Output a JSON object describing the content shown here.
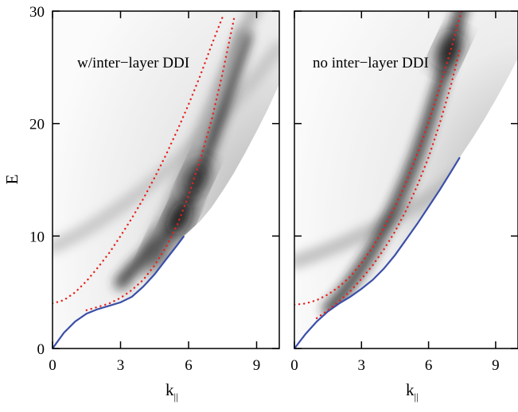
{
  "chart_data": [
    {
      "type": "heatmap",
      "title": "",
      "panel_label": "w/inter−layer DDI",
      "xlabel": "k",
      "xlabel_sub": "||",
      "ylabel": "E",
      "xlim": [
        0,
        10
      ],
      "ylim": [
        0,
        30
      ],
      "xticks": [
        0,
        3,
        6,
        9
      ],
      "yticks": [
        0,
        10,
        20,
        30
      ],
      "series": [
        {
          "style": "solid",
          "color": "#3a4fa8",
          "x": [
            0,
            0.5,
            1.0,
            1.5,
            2.0,
            2.5,
            3.0,
            3.5,
            4.0,
            4.5,
            5.0,
            5.5,
            5.8
          ],
          "y": [
            0,
            1.4,
            2.4,
            3.1,
            3.5,
            3.8,
            4.1,
            4.6,
            5.5,
            6.6,
            7.9,
            9.2,
            10.0
          ]
        },
        {
          "style": "dotted",
          "color": "#e8211c",
          "x": [
            0,
            0.5,
            1.0,
            1.5,
            2.0,
            2.5,
            3.0,
            3.5,
            4.0,
            4.5,
            5.0,
            5.5,
            6.0,
            6.5,
            7.0,
            7.5
          ],
          "y": [
            4.0,
            4.3,
            5.0,
            6.0,
            7.2,
            8.5,
            10.0,
            11.6,
            13.3,
            15.2,
            17.2,
            19.4,
            21.7,
            24.2,
            26.9,
            29.5
          ]
        },
        {
          "style": "dotted",
          "color": "#e8211c",
          "x": [
            1.5,
            2.0,
            2.5,
            3.0,
            3.5,
            4.0,
            4.5,
            5.0,
            5.5,
            6.0,
            6.5,
            7.0,
            7.5,
            8.0
          ],
          "y": [
            3.4,
            3.7,
            4.0,
            4.5,
            5.2,
            6.1,
            7.4,
            9.0,
            11.0,
            13.6,
            16.7,
            20.2,
            24.5,
            29.3
          ]
        }
      ],
      "bands": [
        {
          "x": [
            0,
            1,
            2,
            3,
            4,
            5,
            6,
            7,
            8,
            9,
            10
          ],
          "y": [
            9.0,
            10.0,
            11.2,
            12.6,
            14.1,
            15.8,
            17.6,
            19.6,
            21.8,
            24.2,
            26.8
          ],
          "darkness": 0.25,
          "width": 1.6
        },
        {
          "x": [
            3.0,
            3.5,
            4.0,
            4.5,
            5.0,
            5.5,
            6.0,
            6.5,
            7.0,
            7.5,
            8.0,
            8.5
          ],
          "y": [
            5.8,
            7.0,
            8.0,
            9.2,
            10.2,
            11.6,
            13.5,
            15.8,
            18.5,
            21.5,
            24.6,
            27.8
          ],
          "darkness": 0.8,
          "width": 1.6
        },
        {
          "x": [
            4.5,
            5.0,
            5.5,
            6.0,
            6.5,
            7.0,
            7.5,
            8.0,
            8.5,
            9.0
          ],
          "y": [
            10.0,
            12.0,
            14.2,
            16.5,
            19.0,
            21.5,
            24.0,
            26.4,
            28.6,
            30.5
          ],
          "darkness": 0.35,
          "width": 1.4
        }
      ],
      "dark_spots": [
        {
          "x": 5.6,
          "y": 11.6,
          "darkness": 0.95
        },
        {
          "x": 6.3,
          "y": 15.0,
          "darkness": 0.85
        },
        {
          "x": 4.6,
          "y": 8.6,
          "darkness": 0.7
        }
      ],
      "gray_region_boundary": {
        "x": [
          5.8,
          6.5,
          7.0,
          7.5,
          8.0,
          8.5,
          9.0,
          9.5,
          10.0
        ],
        "y": [
          10.0,
          11.3,
          12.5,
          14.0,
          15.6,
          17.4,
          19.3,
          21.3,
          23.5
        ]
      }
    },
    {
      "type": "heatmap",
      "title": "",
      "panel_label": "no inter−layer DDI",
      "xlabel": "k",
      "xlabel_sub": "||",
      "ylabel": "",
      "xlim": [
        0,
        10
      ],
      "ylim": [
        0,
        30
      ],
      "xticks": [
        0,
        3,
        6,
        9
      ],
      "yticks": [
        0,
        10,
        20,
        30
      ],
      "series": [
        {
          "style": "solid",
          "color": "#3a4fa8",
          "x": [
            0,
            0.5,
            1.0,
            1.5,
            2.0,
            2.5,
            3.0,
            3.5,
            4.0,
            4.5,
            5.0,
            5.5,
            6.0,
            6.5,
            7.0,
            7.4
          ],
          "y": [
            0,
            1.3,
            2.4,
            3.3,
            4.0,
            4.6,
            5.3,
            6.1,
            7.1,
            8.3,
            9.7,
            11.1,
            12.6,
            14.1,
            15.7,
            17.0
          ]
        },
        {
          "style": "dotted",
          "color": "#e8211c",
          "x": [
            0,
            0.5,
            1.0,
            1.5,
            2.0,
            2.5,
            3.0,
            3.5,
            4.0,
            4.5,
            5.0,
            5.5,
            6.0,
            6.5,
            7.0,
            7.5
          ],
          "y": [
            3.9,
            4.0,
            4.3,
            4.8,
            5.5,
            6.4,
            7.6,
            9.0,
            10.7,
            12.6,
            14.8,
            17.3,
            20.1,
            23.2,
            26.6,
            30.2
          ]
        },
        {
          "style": "dotted",
          "color": "#e8211c",
          "x": [
            1.0,
            1.5,
            2.0,
            2.5,
            3.0,
            3.5,
            4.0,
            4.5,
            5.0,
            5.5,
            6.0,
            6.5,
            7.0,
            7.4
          ],
          "y": [
            2.7,
            3.4,
            4.2,
            5.1,
            6.2,
            7.4,
            8.8,
            10.4,
            12.3,
            14.5,
            17.0,
            20.0,
            23.4,
            26.6
          ]
        }
      ],
      "bands": [
        {
          "x": [
            0,
            1,
            2,
            3,
            4,
            5,
            6,
            7,
            8,
            9,
            10
          ],
          "y": [
            7.7,
            8.4,
            9.2,
            10.1,
            11.1,
            12.2,
            13.4,
            14.8,
            16.3,
            17.9,
            19.7
          ],
          "darkness": 0.3,
          "width": 1.6
        },
        {
          "x": [
            1.5,
            2.0,
            2.5,
            3.0,
            3.5,
            4.0,
            4.5,
            5.0,
            5.5,
            6.0,
            6.5,
            7.0,
            7.5
          ],
          "y": [
            3.4,
            4.5,
            5.8,
            7.2,
            8.8,
            10.6,
            12.6,
            14.8,
            17.3,
            20.2,
            23.4,
            26.8,
            30.5
          ],
          "darkness": 0.85,
          "width": 1.4
        }
      ],
      "dark_spots": [
        {
          "x": 6.9,
          "y": 26.5,
          "darkness": 0.9
        }
      ],
      "gray_region_boundary": {
        "x": [
          7.4,
          8.0,
          8.5,
          9.0,
          9.5,
          10.0
        ],
        "y": [
          17.0,
          18.8,
          20.4,
          22.1,
          23.9,
          25.8
        ]
      }
    }
  ]
}
